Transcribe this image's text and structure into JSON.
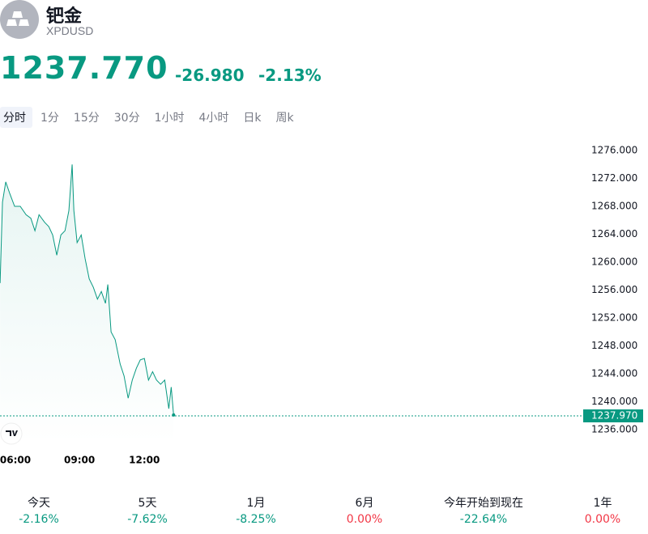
{
  "header": {
    "title": "钯金",
    "symbol": "XPDUSD",
    "price": "1237.770",
    "change": "-26.980",
    "change_percent": "-2.13%",
    "color": "#089981"
  },
  "tabs": {
    "items": [
      "分时",
      "1分",
      "15分",
      "30分",
      "1小时",
      "4小时",
      "日k",
      "周k"
    ],
    "active": 0
  },
  "periods": [
    {
      "label": "今天",
      "change": "-2.16%",
      "color": "#089981"
    },
    {
      "label": "5天",
      "change": "-7.62%",
      "color": "#089981"
    },
    {
      "label": "1月",
      "change": "-8.25%",
      "color": "#089981"
    },
    {
      "label": "6月",
      "change": "0.00%",
      "color": "#f23645"
    },
    {
      "label": "今年开始到现在",
      "change": "-22.64%",
      "color": "#089981"
    },
    {
      "label": "1年",
      "change": "0.00%",
      "color": "#f23645"
    }
  ],
  "chart_data": {
    "type": "line",
    "color": "#089981",
    "x": [
      5.33,
      5.44,
      5.59,
      5.78,
      6.0,
      6.26,
      6.53,
      6.75,
      6.94,
      7.13,
      7.39,
      7.58,
      7.76,
      7.95,
      8.14,
      8.33,
      8.51,
      8.66,
      8.74,
      8.89,
      9.08,
      9.26,
      9.45,
      9.64,
      9.83,
      10.01,
      10.2,
      10.31,
      10.46,
      10.65,
      10.88,
      11.06,
      11.25,
      11.44,
      11.63,
      11.81,
      12.0,
      12.19,
      12.38,
      12.56,
      12.75,
      12.94,
      13.13,
      13.24,
      13.35
    ],
    "values": [
      1257.0,
      1268.6,
      1271.5,
      1269.8,
      1268.0,
      1268.0,
      1266.8,
      1266.3,
      1264.5,
      1266.8,
      1265.7,
      1265.1,
      1263.9,
      1261.0,
      1263.9,
      1264.5,
      1267.4,
      1274.0,
      1267.4,
      1262.8,
      1263.9,
      1260.5,
      1257.6,
      1256.4,
      1254.7,
      1255.8,
      1254.1,
      1256.8,
      1250.0,
      1248.9,
      1245.4,
      1243.7,
      1240.5,
      1243.1,
      1244.8,
      1246.0,
      1246.2,
      1243.1,
      1244.3,
      1243.1,
      1242.5,
      1243.1,
      1239.0,
      1242.1,
      1238.1
    ],
    "xlim": [
      5.325,
      32.1
    ],
    "xticks": [
      {
        "value": 6,
        "label": "06:00"
      },
      {
        "value": 9,
        "label": "09:00"
      },
      {
        "value": 12,
        "label": "12:00"
      }
    ],
    "ylim": [
      1234,
      1278
    ],
    "yticks": [
      {
        "value": 1236,
        "label": "1236.000"
      },
      {
        "value": 1240,
        "label": "1240.000"
      },
      {
        "value": 1244,
        "label": "1244.000"
      },
      {
        "value": 1248,
        "label": "1248.000"
      },
      {
        "value": 1252,
        "label": "1252.000"
      },
      {
        "value": 1256,
        "label": "1256.000"
      },
      {
        "value": 1260,
        "label": "1260.000"
      },
      {
        "value": 1264,
        "label": "1264.000"
      },
      {
        "value": 1268,
        "label": "1268.000"
      },
      {
        "value": 1272,
        "label": "1272.000"
      },
      {
        "value": 1276,
        "label": "1276.000"
      }
    ],
    "last_price": {
      "value": 1237.97,
      "label": "1237.970"
    }
  }
}
